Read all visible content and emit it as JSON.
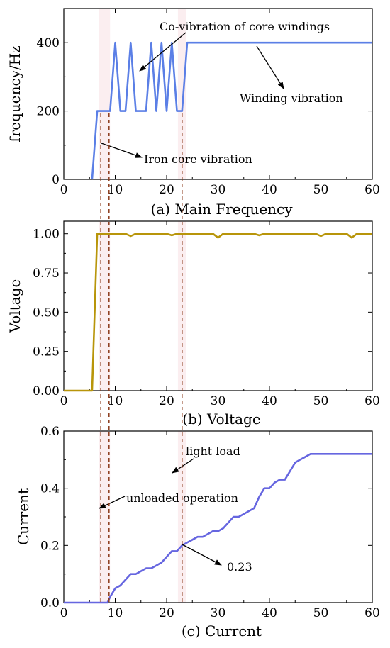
{
  "chart_data": [
    {
      "type": "line",
      "caption": "(a) Main Frequency",
      "xlabel": "",
      "ylabel": "frequency/Hz",
      "xlim": [
        0,
        60
      ],
      "ylim": [
        0,
        500
      ],
      "xticks": [
        0,
        10,
        20,
        30,
        40,
        50,
        60
      ],
      "yticks": [
        0,
        200,
        400
      ],
      "ytick_labels": [
        "0",
        "200",
        "400"
      ],
      "color": "#5b7fe6",
      "series": [
        {
          "x": [
            5.5,
            6.5,
            7,
            8,
            9,
            10,
            11,
            12,
            13,
            14,
            15,
            16,
            17,
            18,
            19,
            20,
            21,
            22,
            23,
            24,
            25,
            60
          ],
          "y": [
            0,
            200,
            200,
            200,
            200,
            400,
            200,
            200,
            400,
            200,
            200,
            200,
            400,
            200,
            400,
            200,
            400,
            200,
            200,
            400,
            400,
            400
          ]
        }
      ],
      "annotations": [
        {
          "text": "Co-vibration of core windings",
          "x": 23.5,
          "y": 455,
          "ax": 15,
          "ay": 330
        },
        {
          "text": "Winding vibration",
          "x": 35,
          "y": 245,
          "ax": 38.5,
          "ay": 395
        },
        {
          "text": "Iron core vibration",
          "x": 16,
          "y": 62,
          "ax": 7.5,
          "ay": 110
        }
      ]
    },
    {
      "type": "line",
      "caption": "(b) Voltage",
      "xlabel": "",
      "ylabel": "Voltage",
      "xlim": [
        0,
        60
      ],
      "ylim": [
        0,
        1.08
      ],
      "xticks": [
        0,
        10,
        20,
        30,
        40,
        50,
        60
      ],
      "yticks": [
        0,
        0.25,
        0.5,
        0.75,
        1.0
      ],
      "ytick_labels": [
        "0.00",
        "0.25",
        "0.50",
        "0.75",
        "1.00"
      ],
      "color": "#b8950a",
      "series": [
        {
          "x": [
            0,
            5.5,
            6.5,
            12,
            13,
            14,
            20,
            21,
            22,
            29,
            30,
            31,
            37,
            38,
            39,
            49,
            50,
            51,
            55,
            56,
            57,
            60
          ],
          "y": [
            0,
            0,
            1.0,
            1.0,
            0.985,
            1.0,
            1.0,
            0.99,
            1.0,
            1.0,
            0.975,
            1.0,
            1.0,
            0.99,
            1.0,
            1.0,
            0.985,
            1.0,
            1.0,
            0.975,
            1.0,
            1.0
          ]
        }
      ],
      "annotations": []
    },
    {
      "type": "line",
      "caption": "(c) Current",
      "xlabel": "",
      "ylabel": "Current",
      "xlim": [
        0,
        60
      ],
      "ylim": [
        0,
        0.6
      ],
      "xticks": [
        0,
        10,
        20,
        30,
        40,
        50,
        60
      ],
      "yticks": [
        0,
        0.2,
        0.4,
        0.6
      ],
      "ytick_labels": [
        "0.0",
        "0.2",
        "0.4",
        "0.6"
      ],
      "color": "#6666e0",
      "series": [
        {
          "x": [
            0,
            8.5,
            9,
            10,
            11,
            12,
            13,
            14,
            15,
            16,
            17,
            18,
            19,
            20,
            21,
            22,
            23,
            24,
            25,
            26,
            27,
            28,
            29,
            30,
            31,
            32,
            33,
            34,
            35,
            36,
            37,
            38,
            39,
            40,
            41,
            42,
            43,
            44,
            45,
            46,
            47,
            48,
            60
          ],
          "y": [
            0,
            0,
            0.02,
            0.05,
            0.06,
            0.08,
            0.1,
            0.1,
            0.11,
            0.12,
            0.12,
            0.13,
            0.14,
            0.16,
            0.18,
            0.18,
            0.2,
            0.21,
            0.22,
            0.23,
            0.23,
            0.24,
            0.25,
            0.25,
            0.26,
            0.28,
            0.3,
            0.3,
            0.31,
            0.32,
            0.33,
            0.37,
            0.4,
            0.4,
            0.42,
            0.43,
            0.43,
            0.46,
            0.49,
            0.5,
            0.51,
            0.52,
            0.52
          ]
        }
      ],
      "annotations": [
        {
          "text": "light load",
          "x": 24.5,
          "y": 0.535,
          "ax": 21.5,
          "ay": 0.48
        },
        {
          "text": "unloaded operation",
          "x": 12.5,
          "y": 0.395,
          "ax": 7,
          "ay": 0.37
        },
        {
          "text": "0.23",
          "x": 32.5,
          "y": 0.125,
          "ax": 23,
          "ay": 0.2
        }
      ]
    }
  ],
  "reference_lines_x": [
    7.2,
    8.8,
    23
  ],
  "reference_bands_x": [
    [
      6.8,
      9.0
    ],
    [
      22.2,
      23.8
    ]
  ]
}
